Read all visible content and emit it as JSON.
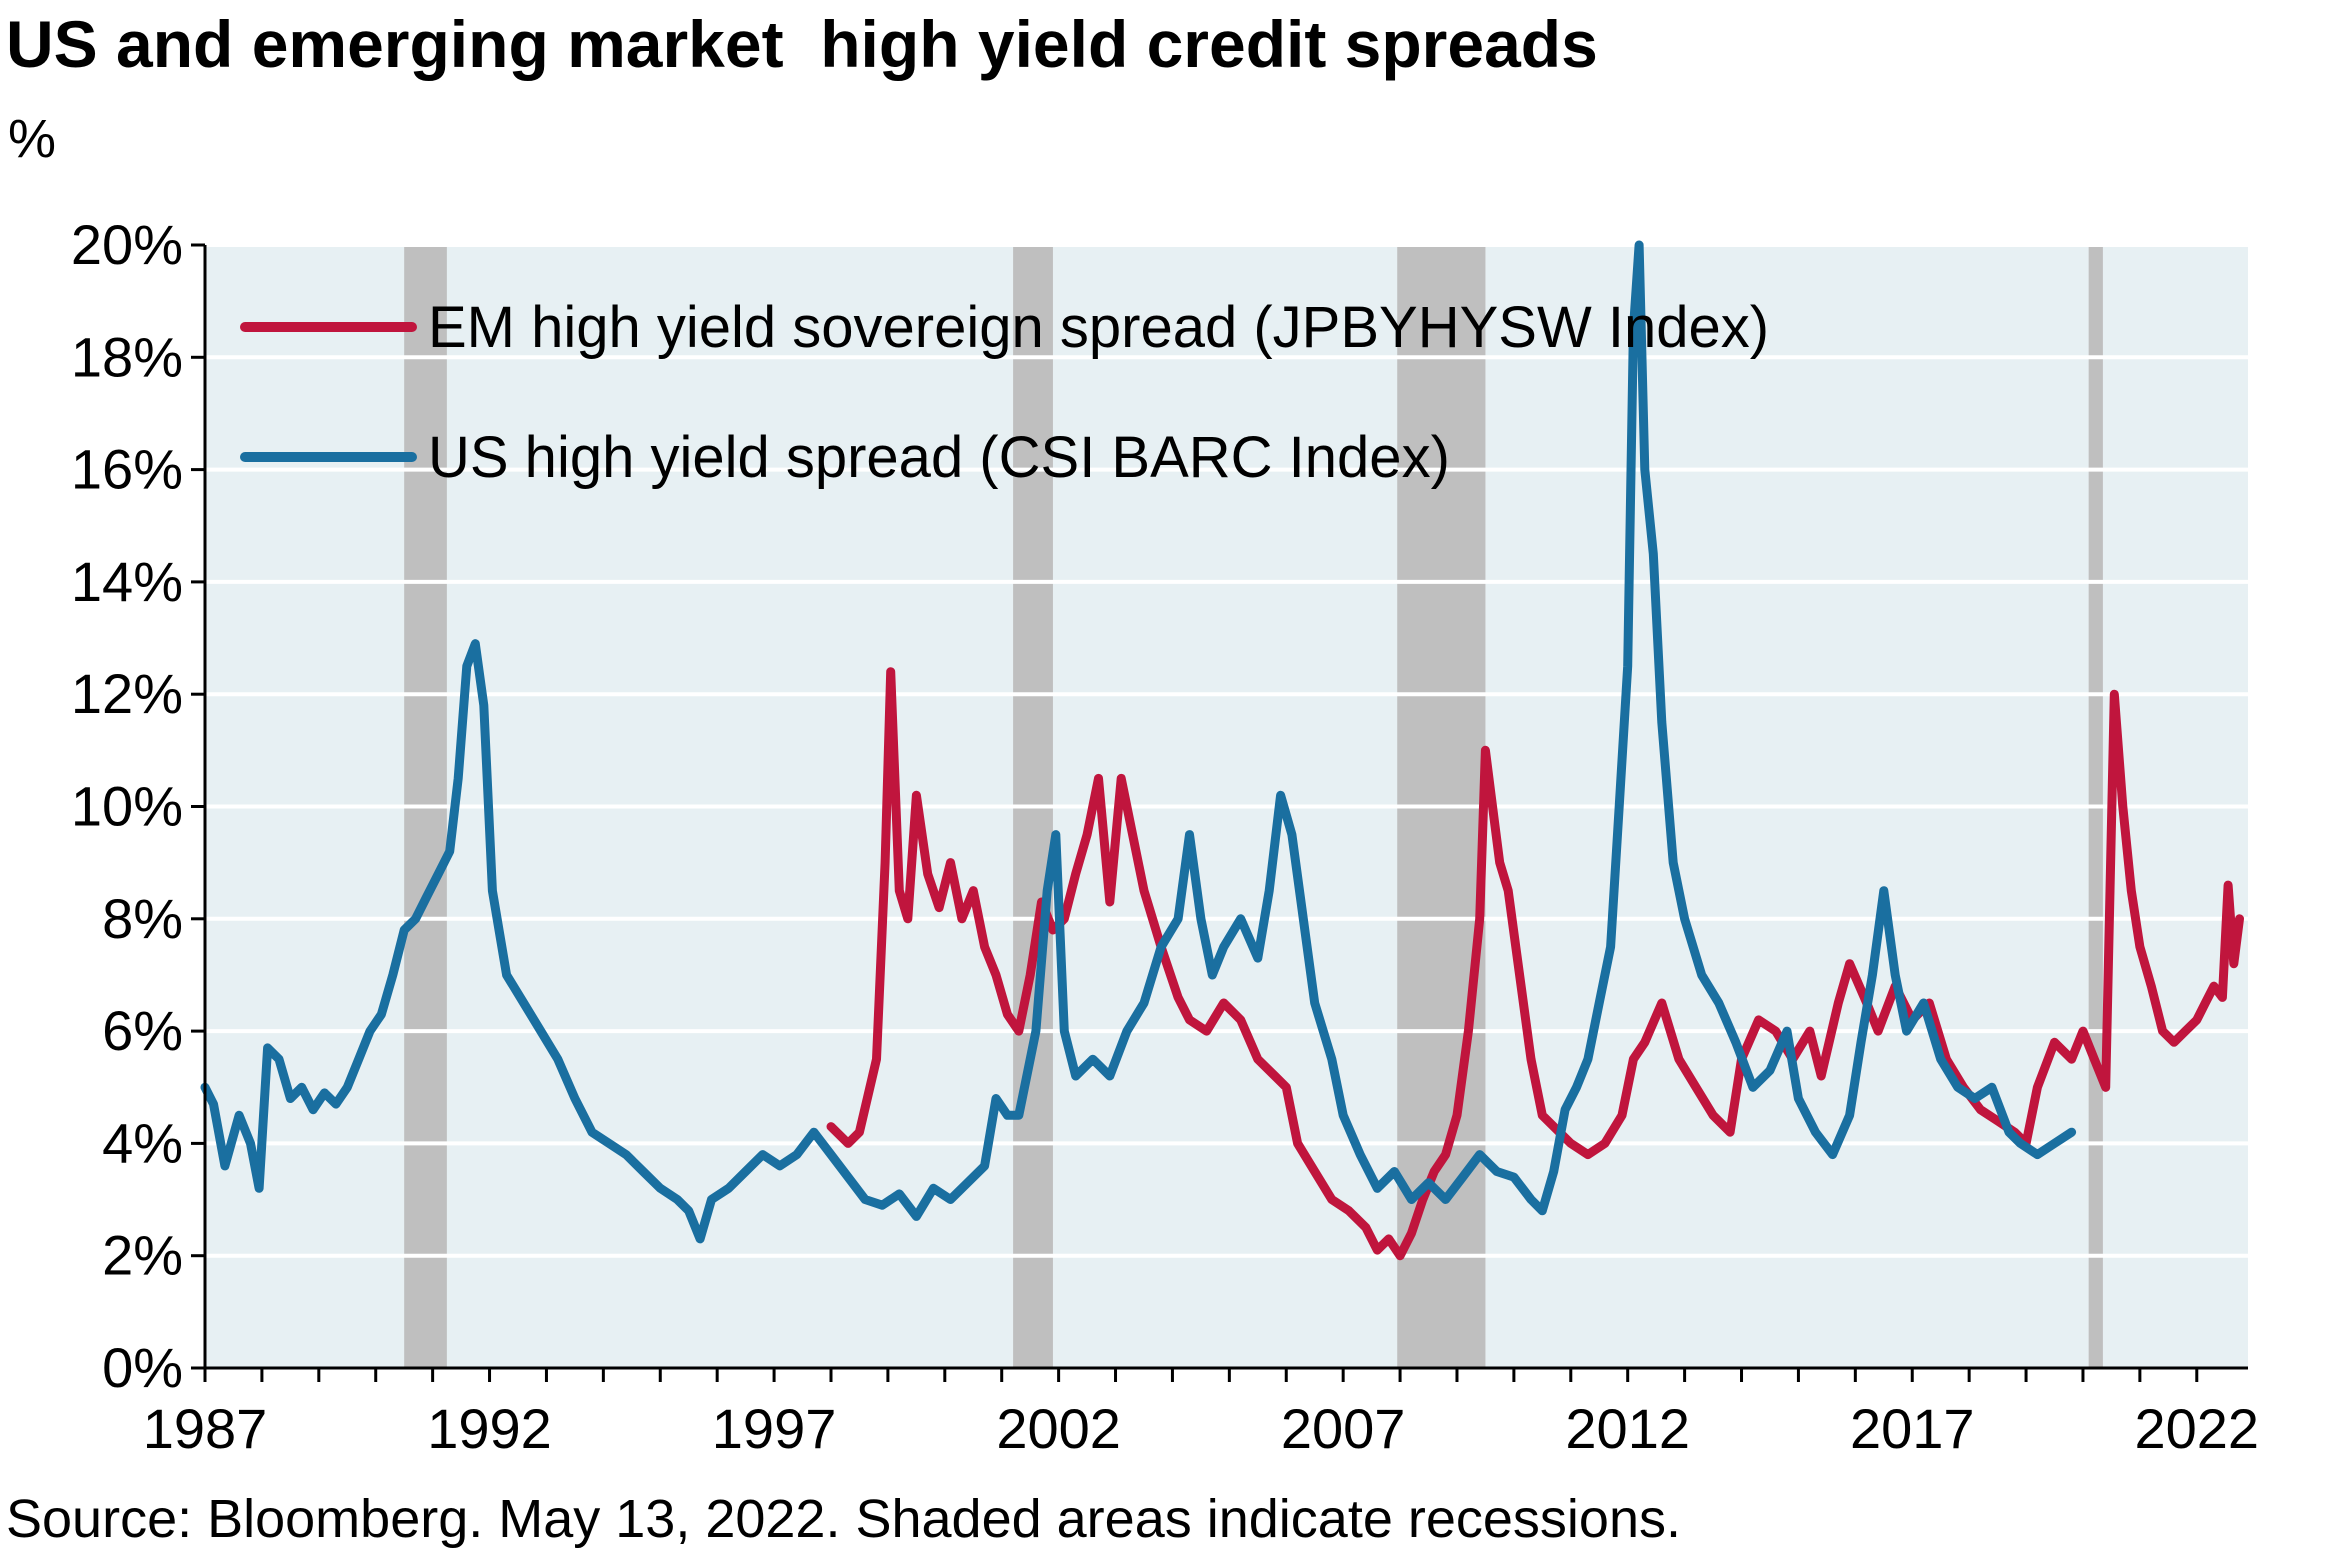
{
  "title": "US and emerging market  high yield credit spreads",
  "y_unit": "%",
  "source": "Source: Bloomberg. May 13, 2022. Shaded areas indicate recessions.",
  "colors": {
    "em": "#c0153d",
    "us": "#1a6fa0",
    "plot_bg": "#e7f0f3",
    "grid": "#ffffff",
    "recession": "#bfbfbf"
  },
  "chart_data": {
    "type": "line",
    "xlim": [
      1987,
      2022.9
    ],
    "ylim": [
      0,
      20
    ],
    "x_ticks": [
      1987,
      1992,
      1997,
      2002,
      2007,
      2012,
      2017,
      2022
    ],
    "x_tick_labels": [
      "1987",
      "1992",
      "1997",
      "2002",
      "2007",
      "2012",
      "2017",
      "2022"
    ],
    "y_ticks": [
      0,
      2,
      4,
      6,
      8,
      10,
      12,
      14,
      16,
      18,
      20
    ],
    "y_tick_labels": [
      "0%",
      "2%",
      "4%",
      "6%",
      "8%",
      "10%",
      "12%",
      "14%",
      "16%",
      "18%",
      "20%"
    ],
    "grid": true,
    "legend_position": "top-left",
    "recessions": [
      [
        1990.5,
        1991.25
      ],
      [
        2001.2,
        2001.9
      ],
      [
        2007.95,
        2009.5
      ],
      [
        2020.1,
        2020.35
      ]
    ],
    "series": [
      {
        "name": "EM high yield sovereign spread (JPBYHYSW Index)",
        "color_key": "em",
        "points": [
          [
            1998.0,
            4.3
          ],
          [
            1998.3,
            4.0
          ],
          [
            1998.5,
            4.2
          ],
          [
            1998.8,
            5.5
          ],
          [
            1998.95,
            9.0
          ],
          [
            1999.05,
            12.4
          ],
          [
            1999.2,
            8.5
          ],
          [
            1999.35,
            8.0
          ],
          [
            1999.5,
            10.2
          ],
          [
            1999.7,
            8.8
          ],
          [
            1999.9,
            8.2
          ],
          [
            2000.1,
            9.0
          ],
          [
            2000.3,
            8.0
          ],
          [
            2000.5,
            8.5
          ],
          [
            2000.7,
            7.5
          ],
          [
            2000.9,
            7.0
          ],
          [
            2001.1,
            6.3
          ],
          [
            2001.3,
            6.0
          ],
          [
            2001.5,
            7.0
          ],
          [
            2001.7,
            8.3
          ],
          [
            2001.9,
            7.8
          ],
          [
            2002.1,
            8.0
          ],
          [
            2002.3,
            8.8
          ],
          [
            2002.5,
            9.5
          ],
          [
            2002.7,
            10.5
          ],
          [
            2002.9,
            8.3
          ],
          [
            2003.1,
            10.5
          ],
          [
            2003.3,
            9.5
          ],
          [
            2003.5,
            8.5
          ],
          [
            2003.8,
            7.5
          ],
          [
            2004.1,
            6.6
          ],
          [
            2004.3,
            6.2
          ],
          [
            2004.6,
            6.0
          ],
          [
            2004.9,
            6.5
          ],
          [
            2005.2,
            6.2
          ],
          [
            2005.5,
            5.5
          ],
          [
            2005.8,
            5.2
          ],
          [
            2006.0,
            5.0
          ],
          [
            2006.2,
            4.0
          ],
          [
            2006.5,
            3.5
          ],
          [
            2006.8,
            3.0
          ],
          [
            2007.1,
            2.8
          ],
          [
            2007.4,
            2.5
          ],
          [
            2007.6,
            2.1
          ],
          [
            2007.8,
            2.3
          ],
          [
            2008.0,
            2.0
          ],
          [
            2008.2,
            2.4
          ],
          [
            2008.4,
            3.0
          ],
          [
            2008.6,
            3.5
          ],
          [
            2008.8,
            3.8
          ],
          [
            2009.0,
            4.5
          ],
          [
            2009.2,
            6.0
          ],
          [
            2009.4,
            8.0
          ],
          [
            2009.5,
            11.0
          ],
          [
            2009.6,
            10.2
          ],
          [
            2009.75,
            9.0
          ],
          [
            2009.9,
            8.5
          ],
          [
            2010.1,
            7.0
          ],
          [
            2010.3,
            5.5
          ],
          [
            2010.5,
            4.5
          ],
          [
            2010.8,
            4.2
          ],
          [
            2011.0,
            4.0
          ],
          [
            2011.3,
            3.8
          ],
          [
            2011.6,
            4.0
          ],
          [
            2011.9,
            4.5
          ],
          [
            2012.1,
            5.5
          ],
          [
            2012.3,
            5.8
          ],
          [
            2012.6,
            6.5
          ],
          [
            2012.9,
            5.5
          ],
          [
            2013.2,
            5.0
          ],
          [
            2013.5,
            4.5
          ],
          [
            2013.8,
            4.2
          ],
          [
            2014.0,
            5.5
          ],
          [
            2014.3,
            6.2
          ],
          [
            2014.6,
            6.0
          ],
          [
            2014.9,
            5.5
          ],
          [
            2015.2,
            6.0
          ],
          [
            2015.4,
            5.2
          ],
          [
            2015.7,
            6.5
          ],
          [
            2015.9,
            7.2
          ],
          [
            2016.2,
            6.5
          ],
          [
            2016.4,
            6.0
          ],
          [
            2016.7,
            6.8
          ],
          [
            2017.0,
            6.2
          ],
          [
            2017.3,
            6.5
          ],
          [
            2017.6,
            5.5
          ],
          [
            2017.9,
            5.0
          ],
          [
            2018.2,
            4.6
          ],
          [
            2018.5,
            4.4
          ],
          [
            2018.8,
            4.2
          ],
          [
            2019.0,
            4.0
          ],
          [
            2019.2,
            5.0
          ],
          [
            2019.5,
            5.8
          ],
          [
            2019.8,
            5.5
          ],
          [
            2020.0,
            6.0
          ],
          [
            2020.2,
            5.5
          ],
          [
            2020.4,
            5.0
          ],
          [
            2020.55,
            12.0
          ],
          [
            2020.7,
            10.0
          ],
          [
            2020.85,
            8.5
          ],
          [
            2021.0,
            7.5
          ],
          [
            2021.2,
            6.8
          ],
          [
            2021.4,
            6.0
          ],
          [
            2021.6,
            5.8
          ],
          [
            2021.8,
            6.0
          ],
          [
            2022.0,
            6.2
          ],
          [
            2022.15,
            6.5
          ],
          [
            2022.3,
            6.8
          ],
          [
            2022.45,
            6.6
          ],
          [
            2022.55,
            8.6
          ],
          [
            2022.65,
            7.2
          ],
          [
            2022.75,
            8.0
          ]
        ]
      },
      {
        "name": "US high yield spread (CSI BARC Index)",
        "color_key": "us",
        "points": [
          [
            1987.0,
            5.0
          ],
          [
            1987.15,
            4.7
          ],
          [
            1987.35,
            3.6
          ],
          [
            1987.6,
            4.5
          ],
          [
            1987.8,
            4.0
          ],
          [
            1987.95,
            3.2
          ],
          [
            1988.1,
            5.7
          ],
          [
            1988.3,
            5.5
          ],
          [
            1988.5,
            4.8
          ],
          [
            1988.7,
            5.0
          ],
          [
            1988.9,
            4.6
          ],
          [
            1989.1,
            4.9
          ],
          [
            1989.3,
            4.7
          ],
          [
            1989.5,
            5.0
          ],
          [
            1989.7,
            5.5
          ],
          [
            1989.9,
            6.0
          ],
          [
            1990.1,
            6.3
          ],
          [
            1990.3,
            7.0
          ],
          [
            1990.5,
            7.8
          ],
          [
            1990.7,
            8.0
          ],
          [
            1990.9,
            8.4
          ],
          [
            1991.1,
            8.8
          ],
          [
            1991.3,
            9.2
          ],
          [
            1991.45,
            10.5
          ],
          [
            1991.6,
            12.5
          ],
          [
            1991.75,
            12.9
          ],
          [
            1991.9,
            11.8
          ],
          [
            1992.05,
            8.5
          ],
          [
            1992.3,
            7.0
          ],
          [
            1992.6,
            6.5
          ],
          [
            1992.9,
            6.0
          ],
          [
            1993.2,
            5.5
          ],
          [
            1993.5,
            4.8
          ],
          [
            1993.8,
            4.2
          ],
          [
            1994.1,
            4.0
          ],
          [
            1994.4,
            3.8
          ],
          [
            1994.7,
            3.5
          ],
          [
            1995.0,
            3.2
          ],
          [
            1995.3,
            3.0
          ],
          [
            1995.5,
            2.8
          ],
          [
            1995.7,
            2.3
          ],
          [
            1995.9,
            3.0
          ],
          [
            1996.2,
            3.2
          ],
          [
            1996.5,
            3.5
          ],
          [
            1996.8,
            3.8
          ],
          [
            1997.1,
            3.6
          ],
          [
            1997.4,
            3.8
          ],
          [
            1997.7,
            4.2
          ],
          [
            1998.0,
            3.8
          ],
          [
            1998.3,
            3.4
          ],
          [
            1998.6,
            3.0
          ],
          [
            1998.9,
            2.9
          ],
          [
            1999.2,
            3.1
          ],
          [
            1999.5,
            2.7
          ],
          [
            1999.8,
            3.2
          ],
          [
            2000.1,
            3.0
          ],
          [
            2000.4,
            3.3
          ],
          [
            2000.7,
            3.6
          ],
          [
            2000.9,
            4.8
          ],
          [
            2001.1,
            4.5
          ],
          [
            2001.3,
            4.5
          ],
          [
            2001.6,
            6.0
          ],
          [
            2001.8,
            8.5
          ],
          [
            2001.95,
            9.5
          ],
          [
            2002.1,
            6.0
          ],
          [
            2002.3,
            5.2
          ],
          [
            2002.6,
            5.5
          ],
          [
            2002.9,
            5.2
          ],
          [
            2003.2,
            6.0
          ],
          [
            2003.5,
            6.5
          ],
          [
            2003.8,
            7.5
          ],
          [
            2004.1,
            8.0
          ],
          [
            2004.3,
            9.5
          ],
          [
            2004.5,
            8.0
          ],
          [
            2004.7,
            7.0
          ],
          [
            2004.9,
            7.5
          ],
          [
            2005.2,
            8.0
          ],
          [
            2005.5,
            7.3
          ],
          [
            2005.7,
            8.5
          ],
          [
            2005.9,
            10.2
          ],
          [
            2006.1,
            9.5
          ],
          [
            2006.3,
            8.0
          ],
          [
            2006.5,
            6.5
          ],
          [
            2006.8,
            5.5
          ],
          [
            2007.0,
            4.5
          ],
          [
            2007.3,
            3.8
          ],
          [
            2007.6,
            3.2
          ],
          [
            2007.9,
            3.5
          ],
          [
            2008.2,
            3.0
          ],
          [
            2008.5,
            3.3
          ],
          [
            2008.8,
            3.0
          ],
          [
            2009.1,
            3.4
          ],
          [
            2009.4,
            3.8
          ],
          [
            2009.7,
            3.5
          ],
          [
            2010.0,
            3.4
          ],
          [
            2010.3,
            3.0
          ],
          [
            2010.5,
            2.8
          ],
          [
            2010.7,
            3.5
          ],
          [
            2010.9,
            4.6
          ],
          [
            2011.1,
            5.0
          ],
          [
            2011.3,
            5.5
          ],
          [
            2011.5,
            6.5
          ],
          [
            2011.7,
            7.5
          ],
          [
            2011.85,
            10.0
          ],
          [
            2012.0,
            12.5
          ],
          [
            2012.1,
            18.5
          ],
          [
            2012.2,
            20.0
          ],
          [
            2012.3,
            16.0
          ],
          [
            2012.45,
            14.5
          ],
          [
            2012.6,
            11.5
          ],
          [
            2012.8,
            9.0
          ],
          [
            2013.0,
            8.0
          ],
          [
            2013.3,
            7.0
          ],
          [
            2013.6,
            6.5
          ],
          [
            2013.9,
            5.8
          ],
          [
            2014.2,
            5.0
          ],
          [
            2014.5,
            5.3
          ],
          [
            2014.8,
            6.0
          ],
          [
            2015.0,
            4.8
          ],
          [
            2015.3,
            4.2
          ],
          [
            2015.6,
            3.8
          ],
          [
            2015.9,
            4.5
          ],
          [
            2016.1,
            5.8
          ],
          [
            2016.3,
            7.0
          ],
          [
            2016.5,
            8.5
          ],
          [
            2016.7,
            7.0
          ],
          [
            2016.9,
            6.0
          ],
          [
            2017.2,
            6.5
          ],
          [
            2017.5,
            5.5
          ],
          [
            2017.8,
            5.0
          ],
          [
            2018.1,
            4.8
          ],
          [
            2018.4,
            5.0
          ],
          [
            2018.7,
            4.2
          ],
          [
            2018.9,
            4.0
          ],
          [
            2019.2,
            3.8
          ],
          [
            2019.5,
            4.0
          ],
          [
            2019.8,
            4.2
          ]
        ]
      }
    ]
  },
  "legend": {
    "items": [
      {
        "label": "EM high yield sovereign spread (JPBYHYSW Index)",
        "color_key": "em"
      },
      {
        "label": "US high yield spread (CSI BARC Index)",
        "color_key": "us"
      }
    ]
  }
}
